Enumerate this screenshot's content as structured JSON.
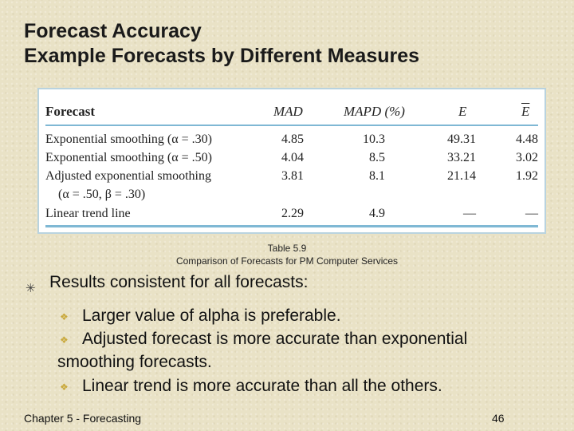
{
  "title": {
    "line1": "Forecast Accuracy",
    "line2": "Example Forecasts by Different Measures"
  },
  "table": {
    "headers": [
      "Forecast",
      "MAD",
      "MAPD (%)",
      "E",
      "E"
    ],
    "rows": [
      {
        "label": "Exponential smoothing (α = .30)",
        "mad": "4.85",
        "mapd": "10.3",
        "e": "49.31",
        "ebar": "4.48"
      },
      {
        "label": "Exponential smoothing (α = .50)",
        "mad": "4.04",
        "mapd": "8.5",
        "e": "33.21",
        "ebar": "3.02"
      },
      {
        "label": "Adjusted exponential smoothing",
        "label2": "(α = .50, β = .30)",
        "mad": "3.81",
        "mapd": "8.1",
        "e": "21.14",
        "ebar": "1.92"
      },
      {
        "label": "Linear trend line",
        "mad": "2.29",
        "mapd": "4.9",
        "e": "—",
        "ebar": "—"
      }
    ]
  },
  "caption": {
    "line1": "Table 5.9",
    "line2": "Comparison of Forecasts for PM Computer Services"
  },
  "bullets": {
    "main": "Results consistent for all forecasts:",
    "sub1": "Larger value of alpha is preferable.",
    "sub2a": "Adjusted forecast is more accurate than exponential",
    "sub2b": "smoothing forecasts.",
    "sub3": "Linear trend is more accurate than all the others."
  },
  "footer": {
    "left": "Chapter 5 - Forecasting",
    "page": "46"
  },
  "colors": {
    "background": "#e9e2c6",
    "table_rule": "#7fb8d4",
    "sub_bullet": "#c9a83a"
  },
  "icons": {
    "main_bullet": "star-bullet-icon",
    "sub_bullet": "diamond-bullet-icon"
  }
}
